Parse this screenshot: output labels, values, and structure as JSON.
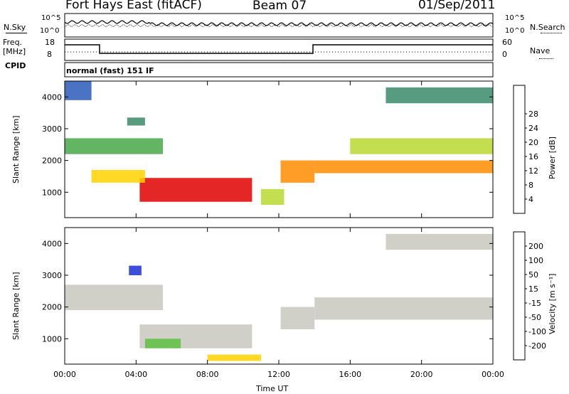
{
  "header": {
    "station": "Fort Hays East (fitACF)",
    "beam": "Beam 07",
    "date": "01/Sep/2011"
  },
  "panels": {
    "nsky_label": "N.Sky",
    "nsearch_label": "N.Search",
    "noise_ticks": [
      "10^5",
      "10^0"
    ],
    "freq_label_1": "Freq.",
    "freq_label_2": "[MHz]",
    "freq_ticks": [
      "18",
      "8"
    ],
    "nave_label": "Nave",
    "nave_ticks": [
      "60",
      "0"
    ],
    "cpid_label": "CPID",
    "cpid_text": "normal (fast) 151 IF"
  },
  "chart_data": [
    {
      "type": "heatmap",
      "name_in_legend": "Power [dB]",
      "ylabel": "Slant Range [km]",
      "xlabel": "Time UT",
      "x_ticks": [
        "00:00",
        "04:00",
        "08:00",
        "12:00",
        "16:00",
        "20:00",
        "00:00"
      ],
      "y_ticks": [
        1000,
        2000,
        3000,
        4000
      ],
      "ylim": [
        200,
        4500
      ],
      "xlim_hours": [
        0,
        24
      ],
      "colorbar": {
        "label": "Power [dB]",
        "ticks": [
          "4",
          "8",
          "12",
          "16",
          "20",
          "24",
          "28"
        ],
        "colors": [
          "#1a2fd6",
          "#2a5ab8",
          "#3a8a6a",
          "#48a848",
          "#b8d830",
          "#ffd200",
          "#ff8c00",
          "#ff3000",
          "#e00000"
        ]
      },
      "regions": [
        {
          "t0": 4.2,
          "t1": 10.5,
          "r0": 700,
          "r1": 1450,
          "level": 8
        },
        {
          "t0": 1.5,
          "t1": 4.5,
          "r0": 1300,
          "r1": 1700,
          "level": 5
        },
        {
          "t0": 0,
          "t1": 5.5,
          "r0": 2200,
          "r1": 2700,
          "level": 3
        },
        {
          "t0": 3.5,
          "t1": 4.5,
          "r0": 3100,
          "r1": 3350,
          "level": 2
        },
        {
          "t0": 11.0,
          "t1": 12.3,
          "r0": 600,
          "r1": 1100,
          "level": 4
        },
        {
          "t0": 12.1,
          "t1": 14.0,
          "r0": 1300,
          "r1": 2000,
          "level": 6
        },
        {
          "t0": 14.0,
          "t1": 24.0,
          "r0": 1600,
          "r1": 2000,
          "level": 6
        },
        {
          "t0": 16.0,
          "t1": 24.0,
          "r0": 2200,
          "r1": 2700,
          "level": 4
        },
        {
          "t0": 18.0,
          "t1": 24.0,
          "r0": 3800,
          "r1": 4300,
          "level": 2
        },
        {
          "t0": 0,
          "t1": 1.5,
          "r0": 3900,
          "r1": 4500,
          "level": 1
        }
      ]
    },
    {
      "type": "heatmap",
      "ylabel": "Slant Range [km]",
      "xlabel": "Time UT",
      "x_ticks": [
        "00:00",
        "04:00",
        "08:00",
        "12:00",
        "16:00",
        "20:00",
        "00:00"
      ],
      "y_ticks": [
        1000,
        2000,
        3000,
        4000
      ],
      "ylim": [
        200,
        4500
      ],
      "xlim_hours": [
        0,
        24
      ],
      "colorbar": {
        "label": "Velocity [m s⁻¹]",
        "ticks": [
          "200",
          "100",
          "50",
          "15",
          "-15",
          "-50",
          "-100",
          "-200"
        ],
        "colors": [
          "#1a2fd6",
          "#2a5ab8",
          "#3a8a6a",
          "#5ec040",
          "#c8c8c0",
          "#ffd200",
          "#ff9a00",
          "#ff5000",
          "#e00000"
        ]
      },
      "regions": [
        {
          "t0": 4.2,
          "t1": 10.5,
          "r0": 700,
          "r1": 1450,
          "level": 4
        },
        {
          "t0": 0,
          "t1": 5.5,
          "r0": 1900,
          "r1": 2700,
          "level": 4
        },
        {
          "t0": 3.6,
          "t1": 4.3,
          "r0": 3000,
          "r1": 3300,
          "level": 0
        },
        {
          "t0": 12.1,
          "t1": 14.0,
          "r0": 1300,
          "r1": 2000,
          "level": 4
        },
        {
          "t0": 14.0,
          "t1": 24.0,
          "r0": 1600,
          "r1": 2300,
          "level": 4
        },
        {
          "t0": 18.0,
          "t1": 24.0,
          "r0": 3800,
          "r1": 4300,
          "level": 4
        },
        {
          "t0": 8.0,
          "t1": 11.0,
          "r0": 300,
          "r1": 500,
          "level": 5
        },
        {
          "t0": 4.5,
          "t1": 6.5,
          "r0": 700,
          "r1": 1000,
          "level": 3
        }
      ]
    }
  ]
}
